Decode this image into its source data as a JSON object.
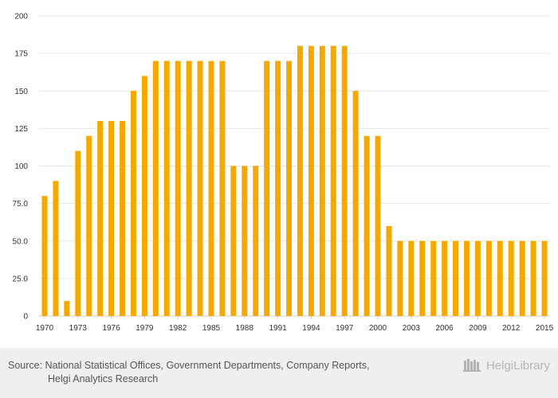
{
  "chart_data": {
    "type": "bar",
    "title": "",
    "xlabel": "",
    "ylabel": "",
    "ylim": [
      0,
      200
    ],
    "y_ticks": [
      "0",
      "25.0",
      "50.0",
      "75.0",
      "100",
      "125",
      "150",
      "175",
      "200"
    ],
    "x_ticks": [
      "1970",
      "1973",
      "1976",
      "1979",
      "1982",
      "1985",
      "1988",
      "1991",
      "1994",
      "1997",
      "2000",
      "2003",
      "2006",
      "2009",
      "2012",
      "2015"
    ],
    "categories": [
      1970,
      1971,
      1972,
      1973,
      1974,
      1975,
      1976,
      1977,
      1978,
      1979,
      1980,
      1981,
      1982,
      1983,
      1984,
      1985,
      1986,
      1987,
      1988,
      1989,
      1990,
      1991,
      1992,
      1993,
      1994,
      1995,
      1996,
      1997,
      1998,
      1999,
      2000,
      2001,
      2002,
      2003,
      2004,
      2005,
      2006,
      2007,
      2008,
      2009,
      2010,
      2011,
      2012,
      2013,
      2014,
      2015
    ],
    "values": [
      80,
      90,
      10,
      110,
      120,
      130,
      130,
      130,
      150,
      160,
      170,
      170,
      170,
      170,
      170,
      170,
      170,
      100,
      100,
      100,
      170,
      170,
      170,
      180,
      180,
      180,
      180,
      180,
      150,
      120,
      120,
      60,
      50,
      50,
      50,
      50,
      50,
      50,
      50,
      50,
      50,
      50,
      50,
      50,
      50,
      50
    ],
    "bar_color": "#f5a900",
    "grid": true
  },
  "footer": {
    "source_line1": "Source: National Statistical Offices, Government Departments, Company Reports,",
    "source_line2": "Helgi Analytics Research",
    "brand": "HelgiLibrary",
    "brand_icon": "library-icon"
  }
}
